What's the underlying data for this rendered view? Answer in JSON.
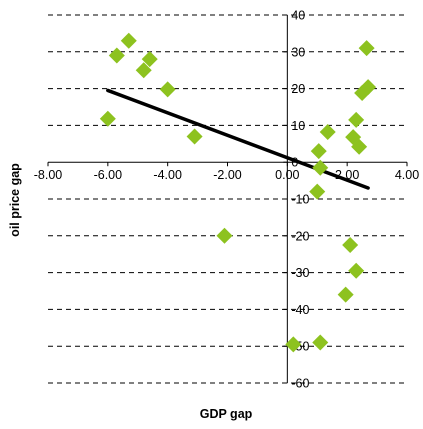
{
  "chart_data": {
    "type": "scatter",
    "title": "",
    "xlabel": "GDP gap",
    "ylabel": "oil price gap",
    "xlim": [
      -8,
      4
    ],
    "ylim": [
      -60,
      40
    ],
    "x_ticks": [
      -8,
      -6,
      -4,
      -2,
      0,
      2,
      4
    ],
    "x_tick_labels": [
      "-8.00",
      "-6.00",
      "-4.00",
      "-2.00",
      "0.00",
      "2.00",
      "4.00"
    ],
    "y_ticks": [
      -60,
      -50,
      -40,
      -30,
      -20,
      -10,
      0,
      10,
      20,
      30,
      40
    ],
    "y_tick_labels": [
      "-60",
      "-50",
      "-40",
      "-30",
      "-20",
      "-10",
      "0",
      "10",
      "20",
      "30",
      "40"
    ],
    "grid": "horizontal dashed",
    "legend": "none",
    "series": [
      {
        "marker": "diamond",
        "color": "#8dc21f",
        "points": [
          {
            "x": -6.0,
            "y": 11.8
          },
          {
            "x": -5.7,
            "y": 29.0
          },
          {
            "x": -5.3,
            "y": 33.0
          },
          {
            "x": -4.8,
            "y": 25.0
          },
          {
            "x": -4.6,
            "y": 28.0
          },
          {
            "x": -4.0,
            "y": 19.8
          },
          {
            "x": -3.1,
            "y": 7.0
          },
          {
            "x": -2.1,
            "y": -20.0
          },
          {
            "x": 0.2,
            "y": -49.5
          },
          {
            "x": 1.0,
            "y": -8.0
          },
          {
            "x": 1.05,
            "y": 3.0
          },
          {
            "x": 1.1,
            "y": -1.5
          },
          {
            "x": 1.1,
            "y": -49.0
          },
          {
            "x": 1.35,
            "y": 8.2
          },
          {
            "x": 1.95,
            "y": -36.0
          },
          {
            "x": 2.1,
            "y": -22.5
          },
          {
            "x": 2.2,
            "y": 6.8
          },
          {
            "x": 2.3,
            "y": 11.5
          },
          {
            "x": 2.3,
            "y": -29.5
          },
          {
            "x": 2.4,
            "y": 4.2
          },
          {
            "x": 2.5,
            "y": 18.8
          },
          {
            "x": 2.65,
            "y": 31.0
          },
          {
            "x": 2.7,
            "y": 20.4
          }
        ]
      }
    ],
    "trendline": {
      "color": "#000000",
      "from": {
        "x": -6.0,
        "y": 19.5
      },
      "to": {
        "x": 2.7,
        "y": -7.0
      }
    }
  }
}
